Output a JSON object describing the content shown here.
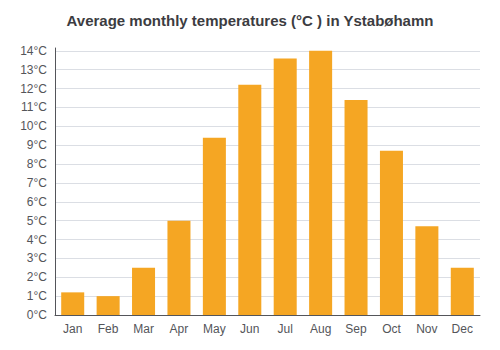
{
  "chart_data": {
    "type": "bar",
    "title": "Average monthly temperatures (°C ) in Ystabøhamn",
    "categories": [
      "Jan",
      "Feb",
      "Mar",
      "Apr",
      "May",
      "Jun",
      "Jul",
      "Aug",
      "Sep",
      "Oct",
      "Nov",
      "Dec"
    ],
    "values": [
      1.2,
      1.0,
      2.5,
      5.0,
      9.4,
      12.2,
      13.6,
      14.0,
      11.4,
      8.7,
      4.7,
      2.5
    ],
    "color": "#F5A623",
    "ylim": [
      0,
      14.15
    ],
    "yticks": [
      {
        "value": 0,
        "label": "0°C"
      },
      {
        "value": 1,
        "label": "1°C"
      },
      {
        "value": 2,
        "label": "2°C"
      },
      {
        "value": 3,
        "label": "3°C"
      },
      {
        "value": 4,
        "label": "4°C"
      },
      {
        "value": 5,
        "label": "5°C"
      },
      {
        "value": 6,
        "label": "6°C"
      },
      {
        "value": 7,
        "label": "7°C"
      },
      {
        "value": 8,
        "label": "8°C"
      },
      {
        "value": 9,
        "label": "9°C"
      },
      {
        "value": 10,
        "label": "10°C"
      },
      {
        "value": 11,
        "label": "11°C"
      },
      {
        "value": 12,
        "label": "12°C"
      },
      {
        "value": 13,
        "label": "13°C"
      },
      {
        "value": 14,
        "label": "14°C"
      }
    ],
    "grid": true
  }
}
